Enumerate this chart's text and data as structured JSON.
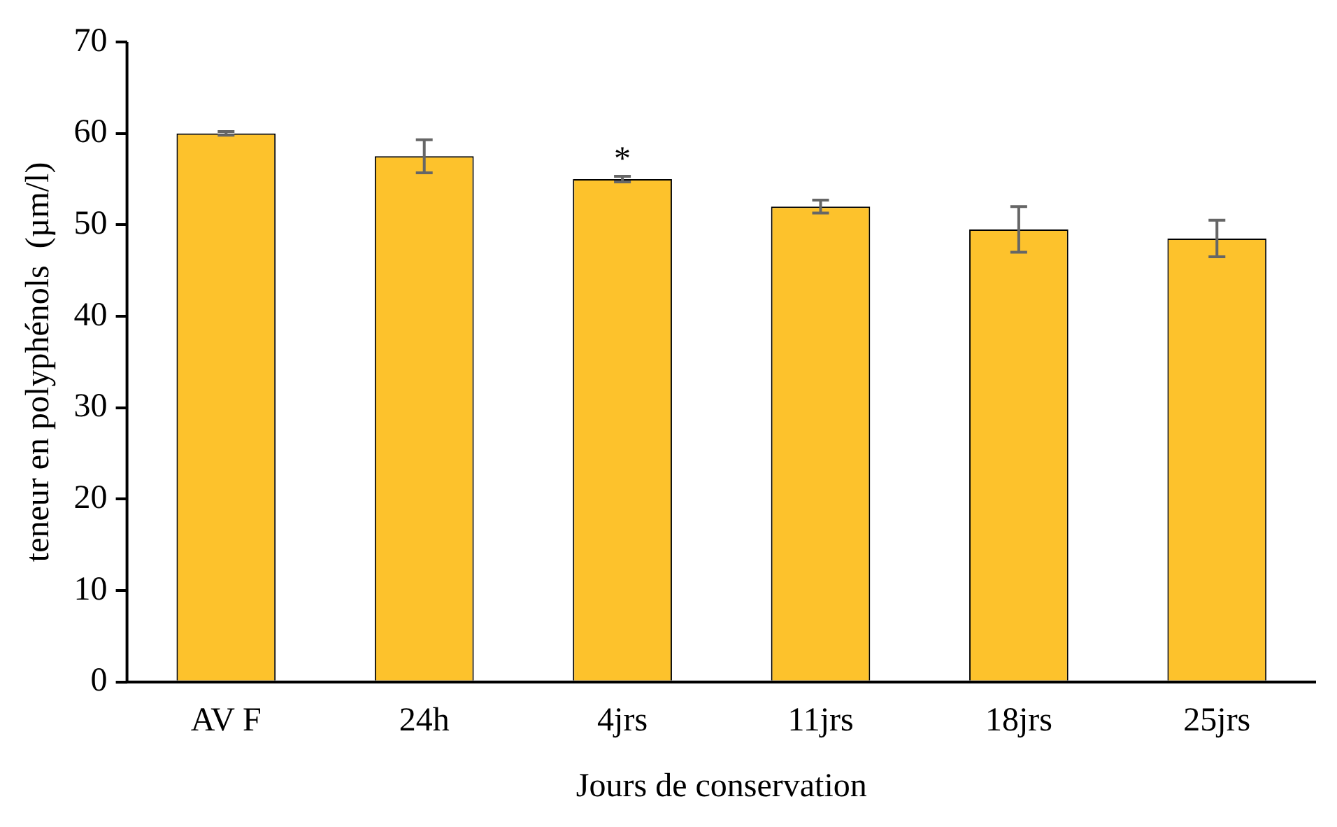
{
  "chart_data": {
    "type": "bar",
    "xlabel": "Jours de conservation",
    "ylabel": "teneur en polyphénols  (µm/l)",
    "categories": [
      "AV F",
      "24h",
      "4jrs",
      "11jrs",
      "18jrs",
      "25jrs"
    ],
    "values": [
      60,
      57.5,
      55,
      52,
      49.5,
      48.5
    ],
    "errors": [
      0.2,
      1.8,
      0.3,
      0.7,
      2.5,
      2
    ],
    "color": "#fdc22c",
    "ylim": [
      0,
      70
    ],
    "yticks": [
      0,
      10,
      20,
      30,
      40,
      50,
      60,
      70
    ],
    "grid": false,
    "legend": false,
    "annotations": [
      "*"
    ]
  }
}
